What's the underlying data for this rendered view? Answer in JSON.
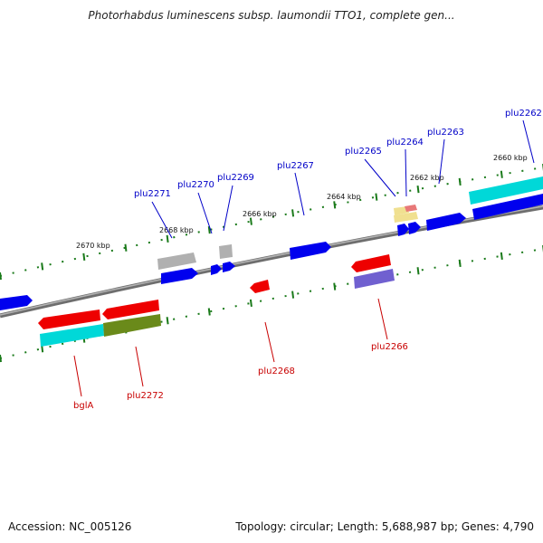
{
  "title": "Photorhabdus luminescens subsp. laumondii TTO1, complete gen...",
  "footer": {
    "accession": "Accession: NC_005126",
    "summary": "Topology: circular; Length: 5,688,987 bp; Genes: 4,790"
  },
  "colors": {
    "backbone": "#808080",
    "tick": "#1a7a1a",
    "forward_label": "#0000c8",
    "reverse_label": "#c80000",
    "blue": "#0000ee",
    "red": "#ee0000",
    "cyan": "#00d8d8",
    "olive": "#6a8a1a",
    "gray": "#b0b0b0",
    "purple": "#7060d0",
    "pale_yellow": "#f0e090"
  },
  "kbp_labels": [
    "2670 kbp",
    "2668 kbp",
    "2666 kbp",
    "2664 kbp",
    "2662 kbp",
    "2660 kbp"
  ],
  "forward_gene_labels": [
    "plu2271",
    "plu2270",
    "plu2269",
    "plu2267",
    "plu2265",
    "plu2264",
    "plu2263",
    "plu2262"
  ],
  "reverse_gene_labels": [
    "bglA",
    "plu2272",
    "plu2268",
    "plu2266"
  ]
}
